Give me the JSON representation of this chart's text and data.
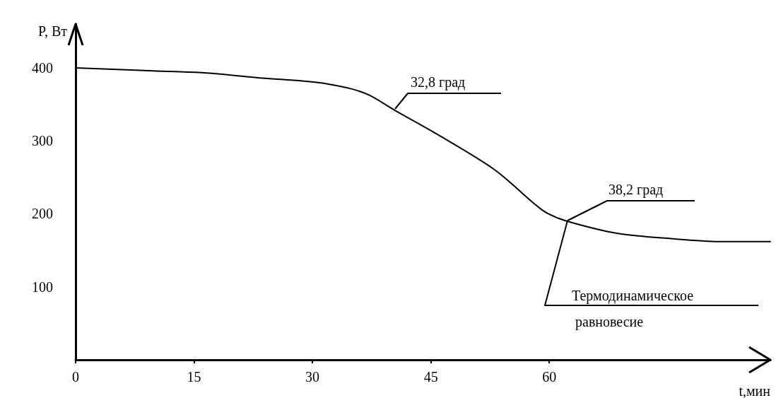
{
  "chart_data": {
    "type": "line",
    "xlabel": "t,мин",
    "ylabel": "P, Вт",
    "x": [
      0,
      9.3,
      16.6,
      23.6,
      28.7,
      31.9,
      35,
      37.3,
      40.4,
      45.8,
      53,
      58.3,
      59.7,
      62.2,
      68.7,
      75.4,
      81.7,
      88
    ],
    "series": [
      {
        "color": "#000000",
        "values": [
          400,
          396,
          393,
          386,
          382,
          378,
          371,
          362,
          342,
          309,
          261,
          212,
          201,
          190,
          173,
          166,
          162,
          162
        ]
      }
    ],
    "xlim": [
      0,
      88
    ],
    "xticks": [
      0,
      15,
      30,
      45,
      60
    ],
    "ylim": [
      0,
      460
    ],
    "yticks": [
      100,
      200,
      300,
      400
    ],
    "annotations": [
      "32,8 град",
      "38,2 град",
      "Термодинамическое равновесие"
    ],
    "grid": false,
    "marker": "none",
    "line_style": "solid"
  }
}
